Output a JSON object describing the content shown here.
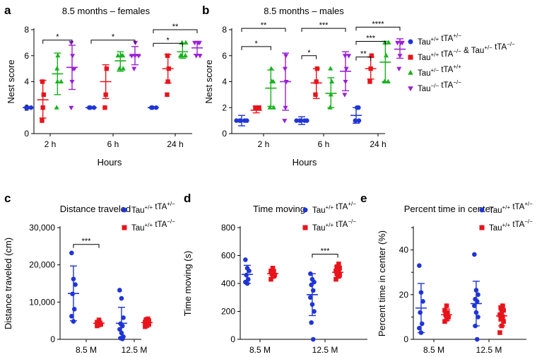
{
  "colors": {
    "blue": "#1f35d6",
    "red": "#e8141c",
    "green": "#19b21e",
    "purple": "#9b1fd6"
  },
  "top_legend": [
    {
      "base": "Tau",
      "sup1": "+/+",
      "mid": " tTA",
      "sup2": "+/−",
      "rest": "",
      "sup3": "",
      "rest2": "",
      "sup4": "",
      "color": "blue",
      "marker": "circle"
    },
    {
      "base": "Tau",
      "sup1": "+/+",
      "mid": " tTA",
      "sup2": "−/−",
      "rest": " & Tau",
      "sup3": "+/−",
      "rest2": " tTA",
      "sup4": "−/−",
      "color": "red",
      "marker": "square"
    },
    {
      "base": "Tau",
      "sup1": "+/−",
      "mid": " tTA",
      "sup2": "+/+",
      "rest": "",
      "sup3": "",
      "rest2": "",
      "sup4": "",
      "color": "green",
      "marker": "triangle"
    },
    {
      "base": "Tau",
      "sup1": "−/−",
      "mid": " tTA",
      "sup2": "−/−",
      "rest": "",
      "sup3": "",
      "rest2": "",
      "sup4": "",
      "color": "purple",
      "marker": "triangle-down"
    }
  ],
  "bottom_legend": [
    {
      "base": "Tau",
      "sup1": "+/+",
      "mid": " tTA",
      "sup2": "+/−",
      "color": "blue",
      "marker": "circle"
    },
    {
      "base": "Tau",
      "sup1": "+/+",
      "mid": " tTA",
      "sup2": "−/−",
      "color": "red",
      "marker": "square"
    }
  ],
  "chart_data": [
    {
      "id": "a",
      "panel_label": "a",
      "type": "scatter",
      "title": "8.5 months – females",
      "xlabel": "Hours",
      "ylabel": "Nest score",
      "ylim": [
        0,
        8
      ],
      "yticks": [
        "0",
        "2",
        "4",
        "6",
        "8"
      ],
      "categories": [
        "2 h",
        "6 h",
        "24 h"
      ],
      "groups": [
        {
          "category": "2 h",
          "series": [
            {
              "color": "blue",
              "marker": "circle",
              "mean": 2.0,
              "sd_low": 2.0,
              "sd_high": 2.0,
              "points": [
                2,
                2,
                2
              ]
            },
            {
              "color": "red",
              "marker": "square",
              "mean": 2.6,
              "sd_low": 1.2,
              "sd_high": 4.1,
              "points": [
                1,
                2,
                3,
                4
              ]
            },
            {
              "color": "green",
              "marker": "triangle",
              "mean": 4.6,
              "sd_low": 3.0,
              "sd_high": 6.2,
              "points": [
                2,
                4,
                4,
                5,
                6
              ]
            },
            {
              "color": "purple",
              "marker": "triangle-down",
              "mean": 5.1,
              "sd_low": 3.4,
              "sd_high": 6.8,
              "points": [
                2,
                4,
                5,
                5,
                6,
                7
              ]
            }
          ]
        },
        {
          "category": "6 h",
          "series": [
            {
              "color": "blue",
              "marker": "circle",
              "mean": 2.0,
              "sd_low": 2.0,
              "sd_high": 2.0,
              "points": [
                2,
                2,
                2
              ]
            },
            {
              "color": "red",
              "marker": "square",
              "mean": 4.0,
              "sd_low": 2.7,
              "sd_high": 5.3,
              "points": [
                2,
                3,
                5
              ]
            },
            {
              "color": "green",
              "marker": "triangle",
              "mean": 5.6,
              "sd_low": 4.8,
              "sd_high": 6.3,
              "points": [
                5,
                5,
                6,
                6,
                6
              ]
            },
            {
              "color": "purple",
              "marker": "triangle-down",
              "mean": 6.0,
              "sd_low": 5.3,
              "sd_high": 6.7,
              "points": [
                5,
                6,
                6,
                6,
                7
              ]
            }
          ]
        },
        {
          "category": "24 h",
          "series": [
            {
              "color": "blue",
              "marker": "circle",
              "mean": 2.0,
              "sd_low": 2.0,
              "sd_high": 2.0,
              "points": [
                2,
                2,
                2
              ]
            },
            {
              "color": "red",
              "marker": "square",
              "mean": 5.0,
              "sd_low": 3.9,
              "sd_high": 6.1,
              "points": [
                3,
                4,
                5,
                6
              ]
            },
            {
              "color": "green",
              "marker": "triangle",
              "mean": 6.3,
              "sd_low": 5.8,
              "sd_high": 6.9,
              "points": [
                6,
                6,
                6,
                7,
                7
              ]
            },
            {
              "color": "purple",
              "marker": "triangle-down",
              "mean": 6.6,
              "sd_low": 6.1,
              "sd_high": 7.1,
              "points": [
                6,
                6,
                7,
                7,
                7
              ]
            }
          ]
        }
      ],
      "significance": [
        {
          "group": 0,
          "from": 1,
          "to": 3,
          "at": 7.2,
          "label": "*"
        },
        {
          "group": 1,
          "from": 0,
          "to": 3,
          "at": 7.2,
          "label": "*"
        },
        {
          "group": 2,
          "from": 0,
          "to": 2,
          "at": 6.95,
          "label": "*"
        },
        {
          "group": 2,
          "from": 0,
          "to": 3,
          "at": 8.0,
          "label": "**"
        }
      ]
    },
    {
      "id": "b",
      "panel_label": "b",
      "type": "scatter",
      "title": "8.5 months – males",
      "xlabel": "Hours",
      "ylabel": "Nest score",
      "ylim": [
        0,
        8
      ],
      "yticks": [
        "0",
        "2",
        "4",
        "6",
        "8"
      ],
      "categories": [
        "2 h",
        "6 h",
        "24 h"
      ],
      "groups": [
        {
          "category": "2 h",
          "series": [
            {
              "color": "blue",
              "marker": "circle",
              "mean": 1.0,
              "sd_low": 0.6,
              "sd_high": 1.4,
              "points": [
                1,
                1,
                1,
                1,
                1
              ]
            },
            {
              "color": "red",
              "marker": "square",
              "mean": 1.8,
              "sd_low": 1.6,
              "sd_high": 2.1,
              "points": [
                2,
                2
              ]
            },
            {
              "color": "green",
              "marker": "triangle",
              "mean": 3.5,
              "sd_low": 2.1,
              "sd_high": 4.9,
              "points": [
                2,
                2,
                4,
                4,
                5
              ]
            },
            {
              "color": "purple",
              "marker": "triangle-down",
              "mean": 4.0,
              "sd_low": 1.8,
              "sd_high": 6.2,
              "points": [
                1,
                2,
                4,
                5,
                6
              ]
            }
          ]
        },
        {
          "category": "6 h",
          "series": [
            {
              "color": "blue",
              "marker": "circle",
              "mean": 1.0,
              "sd_low": 0.7,
              "sd_high": 1.3,
              "points": [
                1,
                1,
                1,
                1,
                1
              ]
            },
            {
              "color": "red",
              "marker": "square",
              "mean": 3.9,
              "sd_low": 2.7,
              "sd_high": 5.0,
              "points": [
                3,
                4,
                5
              ]
            },
            {
              "color": "green",
              "marker": "triangle",
              "mean": 3.1,
              "sd_low": 2.0,
              "sd_high": 4.3,
              "points": [
                2,
                3,
                4,
                5
              ]
            },
            {
              "color": "purple",
              "marker": "triangle-down",
              "mean": 4.8,
              "sd_low": 3.3,
              "sd_high": 6.3,
              "points": [
                3,
                4,
                5,
                6,
                6
              ]
            }
          ]
        },
        {
          "category": "24 h",
          "series": [
            {
              "color": "blue",
              "marker": "circle",
              "mean": 1.4,
              "sd_low": 0.8,
              "sd_high": 2.0,
              "points": [
                1,
                1,
                2,
                2
              ]
            },
            {
              "color": "red",
              "marker": "square",
              "mean": 5.0,
              "sd_low": 4.2,
              "sd_high": 5.9,
              "points": [
                4,
                5,
                6
              ]
            },
            {
              "color": "green",
              "marker": "triangle",
              "mean": 5.5,
              "sd_low": 4.0,
              "sd_high": 7.1,
              "points": [
                4,
                4,
                6,
                7,
                7
              ]
            },
            {
              "color": "purple",
              "marker": "triangle-down",
              "mean": 6.5,
              "sd_low": 5.8,
              "sd_high": 7.3,
              "points": [
                5,
                6,
                7,
                7,
                7
              ]
            }
          ]
        }
      ],
      "significance": [
        {
          "group": 0,
          "from": 0,
          "to": 2,
          "at": 6.7,
          "label": "*"
        },
        {
          "group": 0,
          "from": 0,
          "to": 3,
          "at": 8.1,
          "label": "**"
        },
        {
          "group": 1,
          "from": 0,
          "to": 1,
          "at": 6.0,
          "label": "*"
        },
        {
          "group": 1,
          "from": 0,
          "to": 3,
          "at": 8.1,
          "label": "***"
        },
        {
          "group": 2,
          "from": 0,
          "to": 1,
          "at": 5.9,
          "label": "**"
        },
        {
          "group": 2,
          "from": 0,
          "to": 2,
          "at": 7.1,
          "label": "***"
        },
        {
          "group": 2,
          "from": 0,
          "to": 3,
          "at": 8.2,
          "label": "****"
        }
      ]
    },
    {
      "id": "c",
      "panel_label": "c",
      "type": "scatter",
      "title": "Distance traveled",
      "xlabel": "",
      "ylabel": "Distance traveled (cm)",
      "ylim": [
        0,
        30000
      ],
      "yticks": [
        "0",
        "10,000",
        "20,000",
        "30,000"
      ],
      "categories": [
        "8.5 M",
        "12.5 M"
      ],
      "groups": [
        {
          "category": "8.5 M",
          "series": [
            {
              "color": "blue",
              "marker": "circle",
              "mean": 12300,
              "sd_low": 5000,
              "sd_high": 19700,
              "points": [
                23200,
                16200,
                14700,
                12200,
                8100,
                6200,
                4800
              ]
            },
            {
              "color": "red",
              "marker": "square",
              "mean": 4300,
              "sd_low": 3700,
              "sd_high": 4900,
              "points": [
                3600,
                3900,
                4000,
                4200,
                4300,
                4600,
                5200
              ]
            }
          ]
        },
        {
          "category": "12.5 M",
          "series": [
            {
              "color": "blue",
              "marker": "circle",
              "mean": 4300,
              "sd_low": 500,
              "sd_high": 8600,
              "points": [
                13200,
                11000,
                5800,
                4200,
                3600,
                2700,
                1700,
                700,
                300,
                100
              ]
            },
            {
              "color": "red",
              "marker": "square",
              "mean": 4500,
              "sd_low": 3600,
              "sd_high": 5300,
              "points": [
                3400,
                3700,
                4000,
                4200,
                4400,
                4600,
                4800,
                5000,
                5300,
                5500
              ]
            }
          ]
        }
      ],
      "significance": [
        {
          "group": 0,
          "from": 0,
          "to": 1,
          "at": 25500,
          "label": "***"
        }
      ]
    },
    {
      "id": "d",
      "panel_label": "d",
      "type": "scatter",
      "title": "Time moving",
      "xlabel": "",
      "ylabel": "Time moving (s)",
      "ylim": [
        0,
        800
      ],
      "yticks": [
        "0",
        "200",
        "400",
        "600",
        "800"
      ],
      "categories": [
        "8.5 M",
        "12.5 M"
      ],
      "groups": [
        {
          "category": "8.5 M",
          "series": [
            {
              "color": "blue",
              "marker": "circle",
              "mean": 465,
              "sd_low": 400,
              "sd_high": 530,
              "points": [
                570,
                510,
                490,
                460,
                430,
                410,
                400
              ]
            },
            {
              "color": "red",
              "marker": "square",
              "mean": 470,
              "sd_low": 440,
              "sd_high": 500,
              "points": [
                430,
                450,
                460,
                470,
                480,
                490,
                510
              ]
            }
          ]
        },
        {
          "category": "12.5 M",
          "series": [
            {
              "color": "blue",
              "marker": "circle",
              "mean": 320,
              "sd_low": 170,
              "sd_high": 470,
              "points": [
                470,
                430,
                410,
                390,
                350,
                300,
                250,
                200,
                120,
                0
              ]
            },
            {
              "color": "red",
              "marker": "square",
              "mean": 480,
              "sd_low": 440,
              "sd_high": 520,
              "points": [
                430,
                450,
                460,
                470,
                480,
                490,
                500,
                510,
                520,
                540
              ]
            }
          ]
        }
      ],
      "significance": [
        {
          "group": 1,
          "from": 0,
          "to": 1,
          "at": 610,
          "label": "***"
        }
      ]
    },
    {
      "id": "e",
      "panel_label": "e",
      "type": "scatter",
      "title": "Percent time in center",
      "xlabel": "",
      "ylabel": "Percent time in center (%)",
      "ylim": [
        0,
        50
      ],
      "yticks": [
        "0",
        "20",
        "40"
      ],
      "categories": [
        "8.5 M",
        "12.5 M"
      ],
      "groups": [
        {
          "category": "8.5 M",
          "series": [
            {
              "color": "blue",
              "marker": "circle",
              "mean": 14,
              "sd_low": 3,
              "sd_high": 25,
              "points": [
                33,
                21,
                17,
                12,
                7,
                5,
                3
              ]
            },
            {
              "color": "red",
              "marker": "square",
              "mean": 11,
              "sd_low": 8.5,
              "sd_high": 13.5,
              "points": [
                8,
                9,
                10,
                11,
                12,
                13,
                15
              ]
            }
          ]
        },
        {
          "category": "12.5 M",
          "series": [
            {
              "color": "blue",
              "marker": "circle",
              "mean": 16,
              "sd_low": 6,
              "sd_high": 26,
              "points": [
                38,
                22,
                20,
                18,
                17,
                15,
                12,
                10,
                6,
                0
              ]
            },
            {
              "color": "red",
              "marker": "square",
              "mean": 10.5,
              "sd_low": 6,
              "sd_high": 15,
              "points": [
                3,
                6,
                8,
                9,
                10,
                11,
                12,
                13,
                14,
                15
              ]
            }
          ]
        }
      ],
      "significance": []
    }
  ]
}
